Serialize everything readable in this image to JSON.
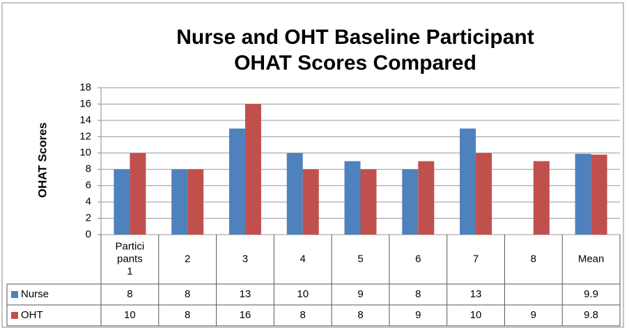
{
  "chart_data": {
    "type": "bar",
    "title": "Nurse and OHT Baseline Participant OHAT Scores Compared",
    "y_label": "OHAT Scores",
    "categories": [
      "Participants 1",
      "2",
      "3",
      "4",
      "5",
      "6",
      "7",
      "8",
      "Mean"
    ],
    "series": [
      {
        "name": "Nurse",
        "color": "#4f81bd",
        "values": [
          8,
          8,
          13,
          10,
          9,
          8,
          13,
          null,
          9.9
        ]
      },
      {
        "name": "OHT",
        "color": "#c0504d",
        "values": [
          10,
          8,
          16,
          8,
          8,
          9,
          10,
          9,
          9.8
        ]
      }
    ],
    "ylim": [
      0,
      18
    ],
    "yticks": [
      0,
      2,
      4,
      6,
      8,
      10,
      12,
      14,
      16,
      18
    ],
    "grid": true,
    "data_table": true
  }
}
